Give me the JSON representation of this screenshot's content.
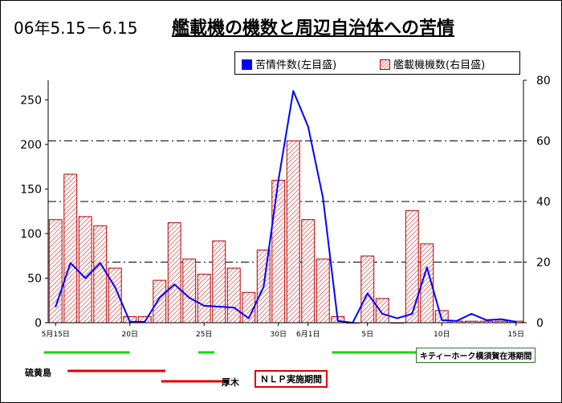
{
  "title": {
    "period": "06年5.15－6.15",
    "main": "艦載機の機数と周辺自治体への苦情"
  },
  "legend": {
    "complaints": "苦情件数(左目盛)",
    "aircraft": "艦載機機数(右目盛)",
    "complaints_color": "#0000ff",
    "aircraft_color": "#e03030"
  },
  "chart_data": {
    "type": "bar+line",
    "days": 32,
    "x_tick_labels": [
      {
        "day": 0,
        "label": "5月15日"
      },
      {
        "day": 5,
        "label": "20日"
      },
      {
        "day": 10,
        "label": "25日"
      },
      {
        "day": 15,
        "label": "30日"
      },
      {
        "day": 17,
        "label": "6月1日"
      },
      {
        "day": 21,
        "label": "5日"
      },
      {
        "day": 26,
        "label": "10日"
      },
      {
        "day": 31,
        "label": "15日"
      }
    ],
    "left_axis": {
      "ylim": [
        0,
        250
      ],
      "ticks": [
        0,
        50,
        100,
        150,
        200,
        250
      ]
    },
    "right_axis": {
      "ylim": [
        0,
        80
      ],
      "ticks": [
        0,
        20,
        40,
        60,
        80
      ]
    },
    "dash_lines_right": [
      20,
      40,
      60
    ],
    "series": [
      {
        "name": "艦載機機数(右目盛)",
        "type": "bar",
        "axis": "right",
        "values": [
          34,
          49,
          35,
          32,
          18,
          2,
          2,
          14,
          33,
          21,
          16,
          27,
          18,
          10,
          24,
          47,
          60,
          34,
          21,
          2,
          0,
          22,
          8,
          0,
          37,
          26,
          4,
          0.5,
          0.5,
          0.5,
          0.5,
          0.5
        ]
      },
      {
        "name": "苦情件数(左目盛)",
        "type": "line",
        "axis": "left",
        "values": [
          18,
          67,
          50,
          67,
          40,
          1,
          1,
          28,
          43,
          28,
          19,
          18,
          17,
          5,
          40,
          160,
          260,
          220,
          140,
          2,
          0,
          33,
          10,
          5,
          10,
          62,
          3,
          2,
          10,
          3,
          4,
          1
        ]
      }
    ]
  },
  "timeline": {
    "green_label": "キティーホーク横須賀在港期間",
    "iwo_label": "硫黄島",
    "atsugi_label": "厚木",
    "nlp_label": "ＮＬＰ実施期間"
  }
}
